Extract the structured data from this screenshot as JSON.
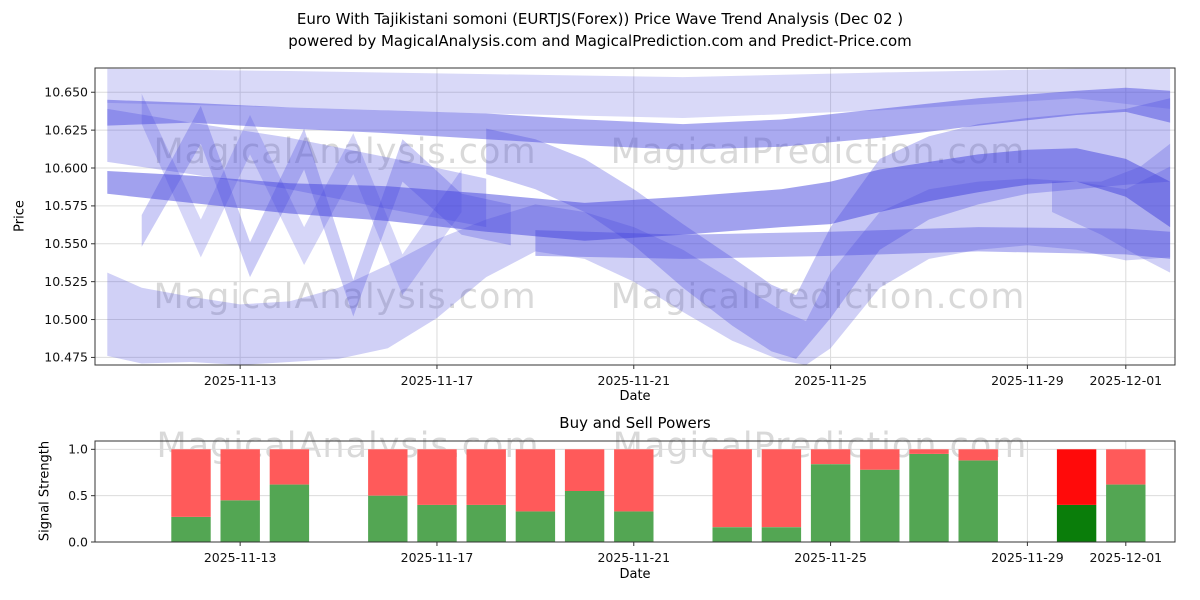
{
  "title": {
    "line1": "Euro With Tajikistani somoni (EURTJS(Forex)) Price Wave Trend Analysis (Dec 02 )",
    "line2": "powered by MagicalAnalysis.com and MagicalPrediction.com and Predict-Price.com"
  },
  "watermarks": {
    "left": "MagicalAnalysis.com",
    "right": "MagicalPrediction.com"
  },
  "chart_data": [
    {
      "type": "area",
      "title": "",
      "xlabel": "Date",
      "ylabel": "Price",
      "x_base_date": "2025-11-10",
      "xlim_days": [
        0.05,
        22.0
      ],
      "ylim": [
        10.47,
        10.666
      ],
      "grid": true,
      "band_color": "#4343dd",
      "xticks": [
        {
          "day": 3,
          "label": "2025-11-13"
        },
        {
          "day": 7,
          "label": "2025-11-17"
        },
        {
          "day": 11,
          "label": "2025-11-21"
        },
        {
          "day": 15,
          "label": "2025-11-25"
        },
        {
          "day": 19,
          "label": "2025-11-29"
        },
        {
          "day": 21,
          "label": "2025-12-01"
        }
      ],
      "yticks": [
        {
          "v": 10.475,
          "label": "10.475"
        },
        {
          "v": 10.5,
          "label": "10.500"
        },
        {
          "v": 10.525,
          "label": "10.525"
        },
        {
          "v": 10.55,
          "label": "10.550"
        },
        {
          "v": 10.575,
          "label": "10.575"
        },
        {
          "v": 10.6,
          "label": "10.600"
        },
        {
          "v": 10.625,
          "label": "10.625"
        },
        {
          "v": 10.65,
          "label": "10.650"
        }
      ],
      "bands": [
        {
          "name": "top-pale-band",
          "opacity": 0.2,
          "points": [
            [
              0.3,
              10.643,
              10.6655
            ],
            [
              4,
              10.64,
              10.664
            ],
            [
              8,
              10.636,
              10.662
            ],
            [
              12,
              10.633,
              10.66
            ],
            [
              16,
              10.638,
              10.663
            ],
            [
              20,
              10.646,
              10.6655
            ],
            [
              21.9,
              10.639,
              10.6655
            ]
          ]
        },
        {
          "name": "top-main-band",
          "opacity": 0.45,
          "points": [
            [
              0.3,
              10.628,
              10.645
            ],
            [
              2,
              10.63,
              10.643
            ],
            [
              4,
              10.626,
              10.64
            ],
            [
              6,
              10.623,
              10.638
            ],
            [
              8,
              10.619,
              10.636
            ],
            [
              10,
              10.615,
              10.632
            ],
            [
              12,
              10.612,
              10.629
            ],
            [
              14,
              10.614,
              10.632
            ],
            [
              16,
              10.62,
              10.639
            ],
            [
              18,
              10.628,
              10.646
            ],
            [
              20,
              10.635,
              10.651
            ],
            [
              21,
              10.637,
              10.653
            ],
            [
              21.9,
              10.63,
              10.651
            ]
          ]
        },
        {
          "name": "upper-left-descending-band",
          "opacity": 0.28,
          "points": [
            [
              0.3,
              10.604,
              10.639
            ],
            [
              2,
              10.596,
              10.63
            ],
            [
              4,
              10.586,
              10.62
            ],
            [
              6,
              10.573,
              10.607
            ],
            [
              8,
              10.561,
              10.593
            ]
          ]
        },
        {
          "name": "central-dark-band",
          "opacity": 0.5,
          "points": [
            [
              0.3,
              10.583,
              10.598
            ],
            [
              2,
              10.577,
              10.595
            ],
            [
              4,
              10.57,
              10.59
            ],
            [
              6,
              10.565,
              10.588
            ],
            [
              8,
              10.558,
              10.583
            ],
            [
              10,
              10.552,
              10.577
            ],
            [
              12,
              10.556,
              10.581
            ],
            [
              14,
              10.561,
              10.586
            ],
            [
              15,
              10.563,
              10.591
            ],
            [
              16,
              10.571,
              10.599
            ],
            [
              17,
              10.578,
              10.604
            ],
            [
              18,
              10.584,
              10.609
            ],
            [
              19,
              10.589,
              10.612
            ],
            [
              20,
              10.591,
              10.613
            ],
            [
              21,
              10.581,
              10.606
            ],
            [
              21.9,
              10.561,
              10.591
            ]
          ]
        },
        {
          "name": "flat-mid-right-band",
          "opacity": 0.38,
          "points": [
            [
              9,
              10.542,
              10.559
            ],
            [
              12,
              10.54,
              10.556
            ],
            [
              15,
              10.542,
              10.558
            ],
            [
              18,
              10.545,
              10.561
            ],
            [
              21,
              10.543,
              10.56
            ],
            [
              21.9,
              10.54,
              10.558
            ]
          ]
        },
        {
          "name": "lower-pale-fan",
          "opacity": 0.25,
          "points": [
            [
              0.3,
              10.476,
              10.531
            ],
            [
              1,
              10.471,
              10.521
            ],
            [
              2,
              10.472,
              10.515
            ],
            [
              3,
              10.47,
              10.51
            ],
            [
              4,
              10.472,
              10.512
            ],
            [
              5,
              10.474,
              10.521
            ],
            [
              6,
              10.481,
              10.536
            ],
            [
              7,
              10.501,
              10.553
            ],
            [
              8,
              10.528,
              10.566
            ],
            [
              9,
              10.545,
              10.576
            ],
            [
              10,
              10.54,
              10.571
            ],
            [
              11,
              10.525,
              10.561
            ],
            [
              12,
              10.505,
              10.546
            ],
            [
              13,
              10.486,
              10.526
            ],
            [
              14,
              10.473,
              10.506
            ],
            [
              14.5,
              10.47,
              10.499
            ],
            [
              15,
              10.481,
              10.531
            ],
            [
              16,
              10.521,
              10.571
            ],
            [
              17,
              10.54,
              10.586
            ],
            [
              18,
              10.546,
              10.591
            ],
            [
              19,
              10.549,
              10.593
            ],
            [
              20,
              10.546,
              10.591
            ],
            [
              21,
              10.539,
              10.586
            ],
            [
              21.9,
              10.541,
              10.601
            ]
          ]
        },
        {
          "name": "zigzag-band-a",
          "opacity": 0.28,
          "points": [
            [
              1,
              10.548,
              10.569
            ],
            [
              2.2,
              10.616,
              10.641
            ],
            [
              3.2,
              10.528,
              10.551
            ],
            [
              4.3,
              10.599,
              10.626
            ],
            [
              5.3,
              10.502,
              10.526
            ],
            [
              6.3,
              10.591,
              10.619
            ],
            [
              7.5,
              10.556,
              10.583
            ],
            [
              8.5,
              10.549,
              10.576
            ]
          ]
        },
        {
          "name": "zigzag-band-b",
          "opacity": 0.22,
          "points": [
            [
              1,
              10.629,
              10.649
            ],
            [
              2.2,
              10.541,
              10.566
            ],
            [
              3.2,
              10.609,
              10.635
            ],
            [
              4.3,
              10.536,
              10.561
            ],
            [
              5.3,
              10.596,
              10.623
            ],
            [
              6.3,
              10.516,
              10.543
            ],
            [
              7.5,
              10.571,
              10.599
            ]
          ]
        },
        {
          "name": "mid-v-band",
          "opacity": 0.3,
          "points": [
            [
              8,
              10.596,
              10.626
            ],
            [
              9,
              10.586,
              10.619
            ],
            [
              10,
              10.571,
              10.606
            ],
            [
              11,
              10.549,
              10.586
            ],
            [
              12,
              10.521,
              10.563
            ],
            [
              13,
              10.496,
              10.541
            ],
            [
              13.8,
              10.479,
              10.523
            ],
            [
              14.3,
              10.474,
              10.516
            ],
            [
              15,
              10.501,
              10.561
            ],
            [
              16,
              10.546,
              10.606
            ],
            [
              17,
              10.566,
              10.621
            ],
            [
              18,
              10.576,
              10.629
            ],
            [
              19,
              10.583,
              10.633
            ],
            [
              20,
              10.586,
              10.636
            ],
            [
              21,
              10.589,
              10.639
            ],
            [
              21.9,
              10.591,
              10.646
            ]
          ]
        },
        {
          "name": "right-edge-wedge",
          "opacity": 0.25,
          "points": [
            [
              19.5,
              10.571,
              10.591
            ],
            [
              20.5,
              10.556,
              10.591
            ],
            [
              21.3,
              10.541,
              10.601
            ],
            [
              21.9,
              10.531,
              10.616
            ]
          ]
        }
      ]
    },
    {
      "type": "bar",
      "title": "Buy and Sell Powers",
      "xlabel": "Date",
      "ylabel": "Signal Strength",
      "x_base_date": "2025-11-10",
      "xlim_days": [
        0.05,
        22.0
      ],
      "ylim": [
        0,
        1.09
      ],
      "grid": true,
      "bar_width_days": 0.8,
      "colors": {
        "buy": "#53a653",
        "sell": "#ff5a5a",
        "buy_highlight": "#0a7d0a",
        "sell_highlight": "#ff0a0a"
      },
      "xticks": [
        {
          "day": 3,
          "label": "2025-11-13"
        },
        {
          "day": 7,
          "label": "2025-11-17"
        },
        {
          "day": 11,
          "label": "2025-11-21"
        },
        {
          "day": 15,
          "label": "2025-11-25"
        },
        {
          "day": 19,
          "label": "2025-11-29"
        },
        {
          "day": 21,
          "label": "2025-12-01"
        }
      ],
      "yticks": [
        {
          "v": 0.0,
          "label": "0.0"
        },
        {
          "v": 0.5,
          "label": "0.5"
        },
        {
          "v": 1.0,
          "label": "1.0"
        }
      ],
      "bars": [
        {
          "date": "2025-11-12",
          "day": 2,
          "buy": 0.27,
          "sell": 0.73,
          "highlight": false
        },
        {
          "date": "2025-11-13",
          "day": 3,
          "buy": 0.45,
          "sell": 0.55,
          "highlight": false
        },
        {
          "date": "2025-11-14",
          "day": 4,
          "buy": 0.62,
          "sell": 0.38,
          "highlight": false
        },
        {
          "date": "2025-11-16",
          "day": 6,
          "buy": 0.5,
          "sell": 0.5,
          "highlight": false
        },
        {
          "date": "2025-11-17",
          "day": 7,
          "buy": 0.4,
          "sell": 0.6,
          "highlight": false
        },
        {
          "date": "2025-11-18",
          "day": 8,
          "buy": 0.4,
          "sell": 0.6,
          "highlight": false
        },
        {
          "date": "2025-11-19",
          "day": 9,
          "buy": 0.33,
          "sell": 0.67,
          "highlight": false
        },
        {
          "date": "2025-11-20",
          "day": 10,
          "buy": 0.55,
          "sell": 0.45,
          "highlight": false
        },
        {
          "date": "2025-11-21",
          "day": 11,
          "buy": 0.33,
          "sell": 0.67,
          "highlight": false
        },
        {
          "date": "2025-11-23",
          "day": 13,
          "buy": 0.16,
          "sell": 0.84,
          "highlight": false
        },
        {
          "date": "2025-11-24",
          "day": 14,
          "buy": 0.16,
          "sell": 0.84,
          "highlight": false
        },
        {
          "date": "2025-11-25",
          "day": 15,
          "buy": 0.84,
          "sell": 0.16,
          "highlight": false
        },
        {
          "date": "2025-11-26",
          "day": 16,
          "buy": 0.78,
          "sell": 0.22,
          "highlight": false
        },
        {
          "date": "2025-11-27",
          "day": 17,
          "buy": 0.95,
          "sell": 0.05,
          "highlight": false
        },
        {
          "date": "2025-11-28",
          "day": 18,
          "buy": 0.88,
          "sell": 0.12,
          "highlight": false
        },
        {
          "date": "2025-11-30",
          "day": 20,
          "buy": 0.4,
          "sell": 0.6,
          "highlight": true
        },
        {
          "date": "2025-12-01",
          "day": 21,
          "buy": 0.62,
          "sell": 0.38,
          "highlight": false
        }
      ]
    }
  ]
}
